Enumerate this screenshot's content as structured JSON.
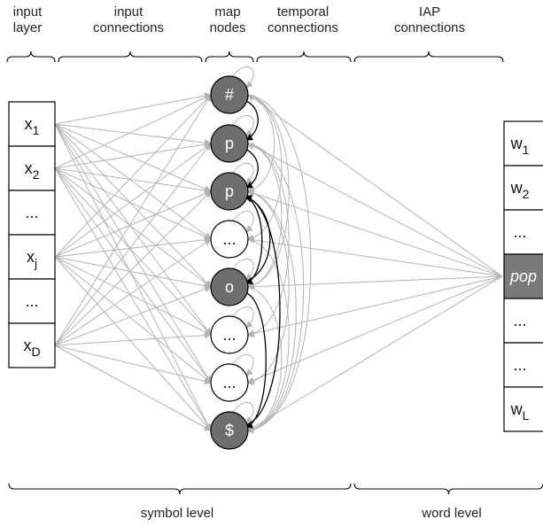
{
  "headers": {
    "input_layer": [
      "input",
      "layer"
    ],
    "input_connections": [
      "input",
      "connections"
    ],
    "map_nodes": [
      "map",
      "nodes"
    ],
    "temporal_connections": [
      "temporal",
      "connections"
    ],
    "iap_connections": [
      "IAP",
      "connections"
    ]
  },
  "footers": {
    "symbol_level": "symbol level",
    "word_level": "word level"
  },
  "input_layer": [
    {
      "base": "x",
      "sub": "1"
    },
    {
      "base": "x",
      "sub": "2"
    },
    {
      "base": "...",
      "sub": ""
    },
    {
      "base": "x",
      "sub": "j"
    },
    {
      "base": "...",
      "sub": ""
    },
    {
      "base": "x",
      "sub": "D"
    }
  ],
  "map_nodes": [
    {
      "label": "#",
      "active": true
    },
    {
      "label": "p",
      "active": true
    },
    {
      "label": "p",
      "active": true
    },
    {
      "label": "...",
      "active": false
    },
    {
      "label": "o",
      "active": true
    },
    {
      "label": "...",
      "active": false
    },
    {
      "label": "...",
      "active": false
    },
    {
      "label": "$",
      "active": true
    }
  ],
  "word_layer": [
    {
      "base": "w",
      "sub": "1",
      "highlight": false
    },
    {
      "base": "w",
      "sub": "2",
      "highlight": false
    },
    {
      "base": "...",
      "sub": "",
      "highlight": false
    },
    {
      "base": "pop",
      "sub": "",
      "highlight": true
    },
    {
      "base": "...",
      "sub": "",
      "highlight": false
    },
    {
      "base": "...",
      "sub": "",
      "highlight": false
    },
    {
      "base": "w",
      "sub": "L",
      "highlight": false
    }
  ],
  "colors": {
    "active_node": "#6e6e6e",
    "inactive_node": "#ffffff",
    "highlight_cell": "#7a7a7a",
    "connection": "#b4b4b4",
    "temporal": "#000000"
  }
}
